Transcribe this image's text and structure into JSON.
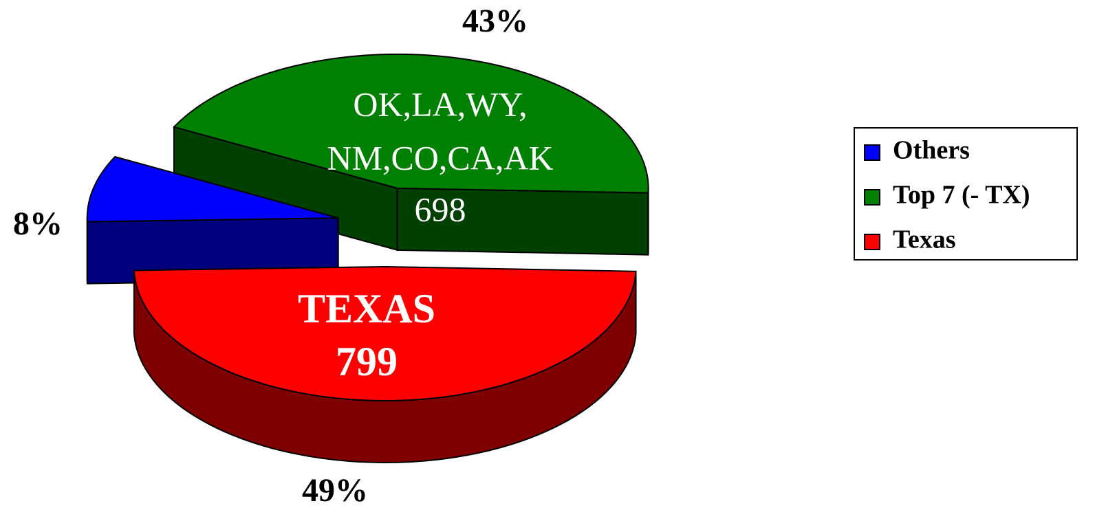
{
  "chart_data": {
    "type": "pie",
    "categories": [
      "Others",
      "Top 7 (- TX)",
      "Texas"
    ],
    "values": [
      8,
      43,
      49
    ],
    "value_labels": [
      "8%",
      "43%",
      "49%"
    ],
    "colors": [
      "#0000ff",
      "#008000",
      "#ff0000"
    ],
    "annotations": [
      {
        "lines": [
          "OK,LA,WY,",
          "NM,CO,CA,AK",
          "698"
        ]
      },
      {
        "lines": [
          "TEXAS",
          "799"
        ]
      }
    ],
    "legend": "right"
  }
}
